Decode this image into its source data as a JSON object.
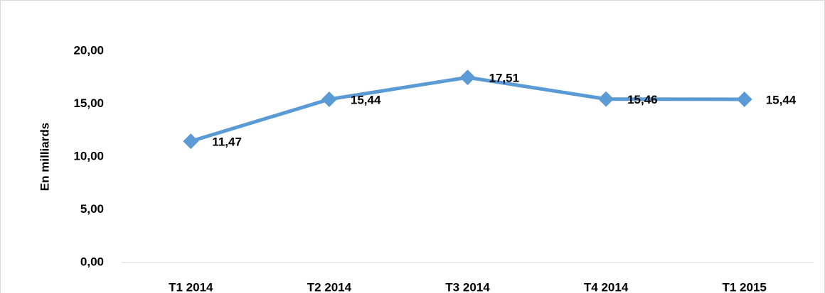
{
  "chart_data": {
    "type": "line",
    "y_label": "En milliards",
    "categories": [
      "T1 2014",
      "T2 2014",
      "T3 2014",
      "T4 2014",
      "T1 2015"
    ],
    "series": [
      {
        "name": "En milliards",
        "color": "#5b9bd5",
        "values": [
          11.47,
          15.44,
          17.51,
          15.46,
          15.44
        ],
        "value_labels": [
          "11,47",
          "15,44",
          "17,51",
          "15,46",
          "15,44"
        ]
      }
    ],
    "ylim": [
      0,
      20
    ],
    "yticks": [
      {
        "value": 0,
        "label": "0,00"
      },
      {
        "value": 5,
        "label": "5,00"
      },
      {
        "value": 10,
        "label": "10,00"
      },
      {
        "value": 15,
        "label": "15,00"
      },
      {
        "value": 20,
        "label": "20,00"
      }
    ],
    "grid": false
  }
}
